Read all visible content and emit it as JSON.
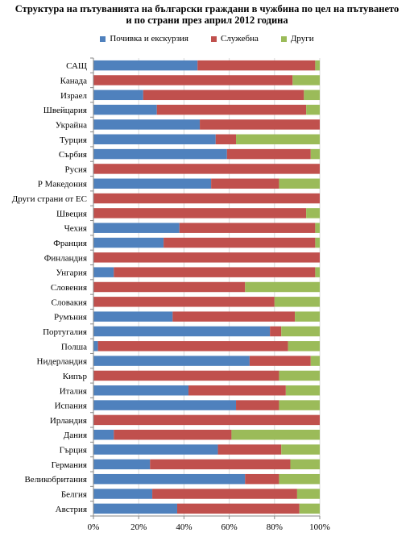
{
  "chart_data": {
    "type": "bar",
    "orientation": "horizontal",
    "stacked": "percent",
    "title_lines": [
      "Структура на пътуванията на български граждани в чужбина по цел на пътуването",
      "и по страни през април 2012 година"
    ],
    "categories": [
      "САЩ",
      "Канада",
      "Израел",
      "Швейцария",
      "Украйна",
      "Турция",
      "Сърбия",
      "Русия",
      "Р Македония",
      "Други страни от ЕС",
      "Швеция",
      "Чехия",
      "Франция",
      "Финландия",
      "Унгария",
      "Словения",
      "Словакия",
      "Румъния",
      "Португалия",
      "Полша",
      "Нидерландия",
      "Кипър",
      "Италия",
      "Испания",
      "Ирландия",
      "Дания",
      "Гърция",
      "Германия",
      "Великобритания",
      "Белгия",
      "Австрия"
    ],
    "series": [
      {
        "name": "Почивка и екскурзия",
        "color": "#4F81BD",
        "values": [
          46,
          0,
          22,
          28,
          47,
          54,
          59,
          0,
          52,
          0,
          0,
          38,
          31,
          0,
          9,
          0,
          0,
          35,
          78,
          2,
          69,
          0,
          42,
          63,
          0,
          9,
          55,
          25,
          67,
          26,
          37
        ]
      },
      {
        "name": "Служебна",
        "color": "#C0504D",
        "values": [
          52,
          88,
          71,
          66,
          53,
          9,
          37,
          100,
          30,
          100,
          94,
          60,
          67,
          100,
          89,
          67,
          80,
          54,
          5,
          84,
          27,
          82,
          43,
          19,
          100,
          52,
          28,
          62,
          15,
          64,
          54
        ]
      },
      {
        "name": "Други",
        "color": "#9BBB59",
        "values": [
          2,
          12,
          7,
          6,
          0,
          37,
          4,
          0,
          18,
          0,
          6,
          2,
          2,
          0,
          2,
          33,
          20,
          11,
          17,
          14,
          4,
          18,
          15,
          18,
          0,
          39,
          17,
          13,
          18,
          10,
          9
        ]
      }
    ],
    "x_ticks": [
      "0%",
      "20%",
      "40%",
      "60%",
      "80%",
      "100%"
    ],
    "xlim": [
      0,
      100
    ],
    "legend_position": "top",
    "grid": "vertical"
  }
}
